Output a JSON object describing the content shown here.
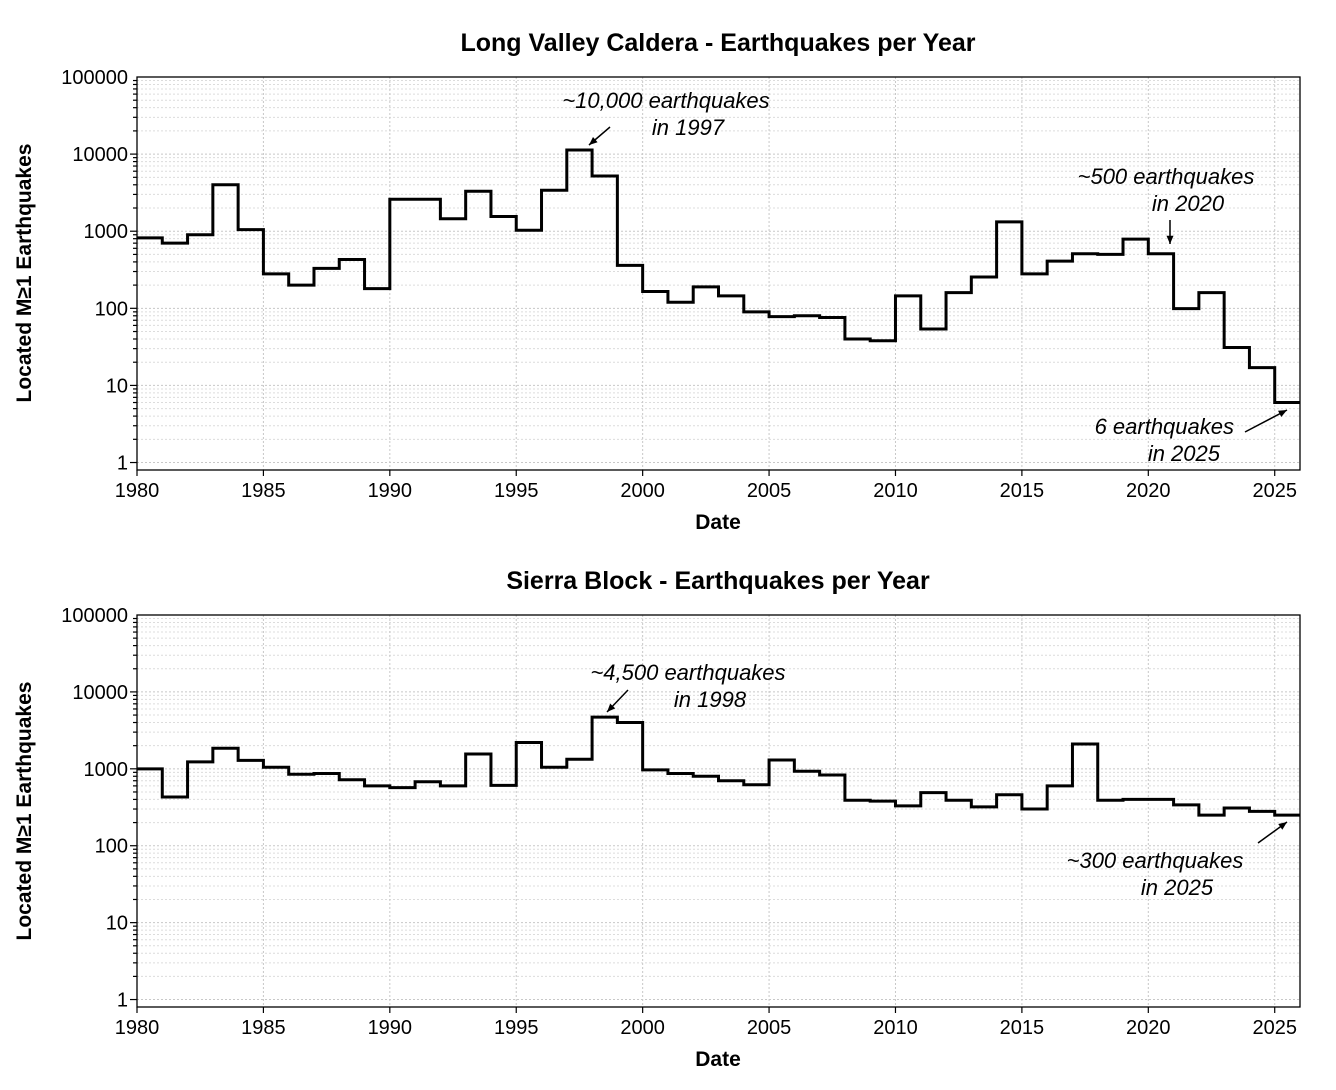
{
  "chart_data": [
    {
      "type": "line",
      "drawstyle": "steps-post",
      "title": "Long Valley Caldera - Earthquakes per Year",
      "xlabel": "Date",
      "ylabel": "Located M≥1 Earthquakes",
      "xlim": [
        1980,
        2026
      ],
      "ylim": [
        0.8,
        100000
      ],
      "yscale": "log",
      "grid": true,
      "xticks": [
        "1980",
        "1985",
        "1990",
        "1995",
        "2000",
        "2005",
        "2010",
        "2015",
        "2020",
        "2025"
      ],
      "yticks": [
        "1",
        "10",
        "100",
        "1000",
        "10000",
        "100000"
      ],
      "x": [
        1980,
        1981,
        1982,
        1983,
        1984,
        1985,
        1986,
        1987,
        1988,
        1989,
        1990,
        1991,
        1992,
        1993,
        1994,
        1995,
        1996,
        1997,
        1998,
        1999,
        2000,
        2001,
        2002,
        2003,
        2004,
        2005,
        2006,
        2007,
        2008,
        2009,
        2010,
        2011,
        2012,
        2013,
        2014,
        2015,
        2016,
        2017,
        2018,
        2019,
        2020,
        2021,
        2022,
        2023,
        2024,
        2025
      ],
      "values": [
        820,
        700,
        900,
        4000,
        1050,
        280,
        200,
        330,
        430,
        180,
        2600,
        2600,
        1450,
        3300,
        1550,
        1030,
        3400,
        11300,
        5200,
        360,
        165,
        120,
        190,
        145,
        90,
        78,
        80,
        76,
        40,
        38,
        145,
        54,
        160,
        255,
        1320,
        280,
        410,
        510,
        500,
        790,
        510,
        99,
        160,
        31,
        17,
        6
      ],
      "annotations": [
        {
          "lines": [
            "~10,000 earthquakes",
            "in 1997"
          ]
        },
        {
          "lines": [
            "~500 earthquakes",
            "in 2020"
          ]
        },
        {
          "lines": [
            "6 earthquakes",
            "in 2025"
          ]
        }
      ]
    },
    {
      "type": "line",
      "drawstyle": "steps-post",
      "title": "Sierra Block - Earthquakes per Year",
      "xlabel": "Date",
      "ylabel": "Located M≥1 Earthquakes",
      "xlim": [
        1980,
        2026
      ],
      "ylim": [
        0.8,
        100000
      ],
      "yscale": "log",
      "grid": true,
      "xticks": [
        "1980",
        "1985",
        "1990",
        "1995",
        "2000",
        "2005",
        "2010",
        "2015",
        "2020",
        "2025"
      ],
      "yticks": [
        "1",
        "10",
        "100",
        "1000",
        "10000",
        "100000"
      ],
      "x": [
        1980,
        1981,
        1982,
        1983,
        1984,
        1985,
        1986,
        1987,
        1988,
        1989,
        1990,
        1991,
        1992,
        1993,
        1994,
        1995,
        1996,
        1997,
        1998,
        1999,
        2000,
        2001,
        2002,
        2003,
        2004,
        2005,
        2006,
        2007,
        2008,
        2009,
        2010,
        2011,
        2012,
        2013,
        2014,
        2015,
        2016,
        2017,
        2018,
        2019,
        2020,
        2021,
        2022,
        2023,
        2024,
        2025
      ],
      "values": [
        1000,
        430,
        1230,
        1850,
        1290,
        1050,
        850,
        870,
        720,
        600,
        570,
        680,
        600,
        1560,
        610,
        2200,
        1050,
        1330,
        4700,
        4000,
        970,
        870,
        800,
        700,
        620,
        1300,
        930,
        830,
        390,
        380,
        330,
        490,
        390,
        320,
        460,
        300,
        600,
        2100,
        390,
        400,
        400,
        340,
        250,
        310,
        280,
        250
      ],
      "annotations": [
        {
          "lines": [
            "~4,500 earthquakes",
            "in 1998"
          ]
        },
        {
          "lines": [
            "~300 earthquakes",
            "in 2025"
          ]
        }
      ]
    }
  ]
}
